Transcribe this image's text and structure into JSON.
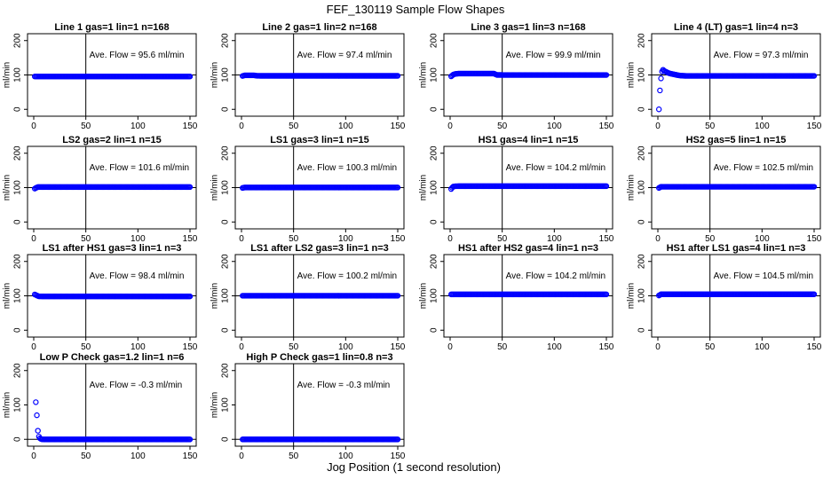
{
  "figure": {
    "title": "FEF_130119  Sample Flow Shapes",
    "xlabel": "Jog Position (1 second resolution)",
    "point_color": "#0000ff",
    "line_color": "#000000"
  },
  "chart_data": [
    {
      "type": "scatter",
      "title": "Line 1 gas=1 lin=1 n=168",
      "annotation": "Ave. Flow = 95.6  ml/min",
      "ylabel": "ml/min",
      "xlim": [
        0,
        150
      ],
      "ylim": [
        -20,
        220
      ],
      "xticks": [
        0,
        50,
        100,
        150
      ],
      "yticks": [
        0,
        100,
        200
      ],
      "hline": 100,
      "vline": 50,
      "x": [
        1,
        150
      ],
      "y": [
        95.6,
        95.6
      ]
    },
    {
      "type": "scatter",
      "title": "Line 2 gas=1 lin=2 n=168",
      "annotation": "Ave. Flow = 97.4  ml/min",
      "ylabel": "ml/min",
      "xlim": [
        0,
        150
      ],
      "ylim": [
        -20,
        220
      ],
      "xticks": [
        0,
        50,
        100,
        150
      ],
      "yticks": [
        0,
        100,
        200
      ],
      "hline": 100,
      "vline": 50,
      "x": [
        1,
        2,
        3,
        5,
        8,
        12,
        15,
        20,
        150
      ],
      "y": [
        97,
        98,
        99,
        99,
        99,
        99,
        97.5,
        97.4,
        97.4
      ]
    },
    {
      "type": "scatter",
      "title": "Line 3 gas=1 lin=3 n=168",
      "annotation": "Ave. Flow = 99.9  ml/min",
      "ylabel": "ml/min",
      "xlim": [
        0,
        150
      ],
      "ylim": [
        -20,
        220
      ],
      "xticks": [
        0,
        50,
        100,
        150
      ],
      "yticks": [
        0,
        100,
        200
      ],
      "hline": 100,
      "vline": 50,
      "x": [
        1,
        3,
        5,
        8,
        15,
        25,
        35,
        42,
        45,
        60,
        150
      ],
      "y": [
        96,
        101,
        103,
        104,
        104,
        104,
        104,
        104,
        100,
        99.9,
        99.9
      ]
    },
    {
      "type": "scatter",
      "title": "Line 4 (LT) gas=1 lin=4 n=3",
      "annotation": "Ave. Flow = 97.3  ml/min",
      "ylabel": "ml/min",
      "xlim": [
        0,
        150
      ],
      "ylim": [
        -20,
        220
      ],
      "xticks": [
        0,
        50,
        100,
        150
      ],
      "yticks": [
        0,
        100,
        200
      ],
      "hline": 100,
      "vline": 50,
      "x": [
        1,
        2,
        3,
        4,
        5,
        6,
        8,
        10,
        12,
        15,
        18,
        22,
        27,
        150
      ],
      "y": [
        0,
        55,
        90,
        110,
        115,
        112,
        109,
        106,
        104,
        102,
        100,
        98,
        97.3,
        97.3
      ]
    },
    {
      "type": "scatter",
      "title": "LS2 gas=2 lin=1 n=15",
      "annotation": "Ave. Flow = 101.6  ml/min",
      "ylabel": "ml/min",
      "xlim": [
        0,
        150
      ],
      "ylim": [
        -20,
        220
      ],
      "xticks": [
        0,
        50,
        100,
        150
      ],
      "yticks": [
        0,
        100,
        200
      ],
      "hline": 100,
      "vline": 50,
      "x": [
        1,
        2,
        4,
        150
      ],
      "y": [
        97,
        99,
        101.6,
        101.6
      ]
    },
    {
      "type": "scatter",
      "title": "LS1 gas=3 lin=1 n=15",
      "annotation": "Ave. Flow = 100.3  ml/min",
      "ylabel": "ml/min",
      "xlim": [
        0,
        150
      ],
      "ylim": [
        -20,
        220
      ],
      "xticks": [
        0,
        50,
        100,
        150
      ],
      "yticks": [
        0,
        100,
        200
      ],
      "hline": 100,
      "vline": 50,
      "x": [
        1,
        3,
        150
      ],
      "y": [
        99,
        100.3,
        100.3
      ]
    },
    {
      "type": "scatter",
      "title": "HS1 gas=4 lin=1 n=15",
      "annotation": "Ave. Flow = 104.2  ml/min",
      "ylabel": "ml/min",
      "xlim": [
        0,
        150
      ],
      "ylim": [
        -20,
        220
      ],
      "xticks": [
        0,
        50,
        100,
        150
      ],
      "yticks": [
        0,
        100,
        200
      ],
      "hline": 100,
      "vline": 50,
      "x": [
        1,
        2,
        3,
        5,
        8,
        150
      ],
      "y": [
        96,
        100,
        103,
        104,
        104.2,
        104.2
      ]
    },
    {
      "type": "scatter",
      "title": "HS2 gas=5 lin=1 n=15",
      "annotation": "Ave. Flow = 102.5  ml/min",
      "ylabel": "ml/min",
      "xlim": [
        0,
        150
      ],
      "ylim": [
        -20,
        220
      ],
      "xticks": [
        0,
        50,
        100,
        150
      ],
      "yticks": [
        0,
        100,
        200
      ],
      "hline": 100,
      "vline": 50,
      "x": [
        1,
        3,
        150
      ],
      "y": [
        99,
        102.5,
        102.5
      ]
    },
    {
      "type": "scatter",
      "title": "LS1 after HS1 gas=3 lin=1 n=3",
      "annotation": "Ave. Flow = 98.4  ml/min",
      "ylabel": "ml/min",
      "xlim": [
        0,
        150
      ],
      "ylim": [
        -20,
        220
      ],
      "xticks": [
        0,
        50,
        100,
        150
      ],
      "yticks": [
        0,
        100,
        200
      ],
      "hline": 100,
      "vline": 50,
      "x": [
        1,
        3,
        5,
        8,
        150
      ],
      "y": [
        104,
        101,
        98.5,
        98.4,
        98.4
      ]
    },
    {
      "type": "scatter",
      "title": "LS1 after LS2 gas=3 lin=1 n=3",
      "annotation": "Ave. Flow = 100.2  ml/min",
      "ylabel": "ml/min",
      "xlim": [
        0,
        150
      ],
      "ylim": [
        -20,
        220
      ],
      "xticks": [
        0,
        50,
        100,
        150
      ],
      "yticks": [
        0,
        100,
        200
      ],
      "hline": 100,
      "vline": 50,
      "x": [
        1,
        150
      ],
      "y": [
        100.2,
        100.2
      ]
    },
    {
      "type": "scatter",
      "title": "HS1 after HS2 gas=4 lin=1 n=3",
      "annotation": "Ave. Flow = 104.2  ml/min",
      "ylabel": "ml/min",
      "xlim": [
        0,
        150
      ],
      "ylim": [
        -20,
        220
      ],
      "xticks": [
        0,
        50,
        100,
        150
      ],
      "yticks": [
        0,
        100,
        200
      ],
      "hline": 100,
      "vline": 50,
      "x": [
        1,
        150
      ],
      "y": [
        104.2,
        104.2
      ]
    },
    {
      "type": "scatter",
      "title": "HS1 after LS1 gas=4 lin=1 n=3",
      "annotation": "Ave. Flow = 104.5  ml/min",
      "ylabel": "ml/min",
      "xlim": [
        0,
        150
      ],
      "ylim": [
        -20,
        220
      ],
      "xticks": [
        0,
        50,
        100,
        150
      ],
      "yticks": [
        0,
        100,
        200
      ],
      "hline": 100,
      "vline": 50,
      "x": [
        1,
        3,
        150
      ],
      "y": [
        101,
        104.5,
        104.5
      ]
    },
    {
      "type": "scatter",
      "title": "Low P Check gas=1.2 lin=1 n=6",
      "annotation": "Ave. Flow = -0.3  ml/min",
      "ylabel": "ml/min",
      "xlim": [
        0,
        150
      ],
      "ylim": [
        -20,
        220
      ],
      "xticks": [
        0,
        50,
        100,
        150
      ],
      "yticks": [
        0,
        100,
        200
      ],
      "hline": 0,
      "vline": 50,
      "x": [
        2,
        3,
        4,
        5,
        6,
        7,
        8,
        10,
        150
      ],
      "y": [
        108,
        70,
        25,
        8,
        3,
        1,
        0,
        -0.3,
        -0.3
      ]
    },
    {
      "type": "scatter",
      "title": "High P Check gas=1 lin=0.8 n=3",
      "annotation": "Ave. Flow = -0.3  ml/min",
      "ylabel": "ml/min",
      "xlim": [
        0,
        150
      ],
      "ylim": [
        -20,
        220
      ],
      "xticks": [
        0,
        50,
        100,
        150
      ],
      "yticks": [
        0,
        100,
        200
      ],
      "hline": 0,
      "vline": 50,
      "x": [
        1,
        150
      ],
      "y": [
        -0.3,
        -0.3
      ]
    }
  ]
}
